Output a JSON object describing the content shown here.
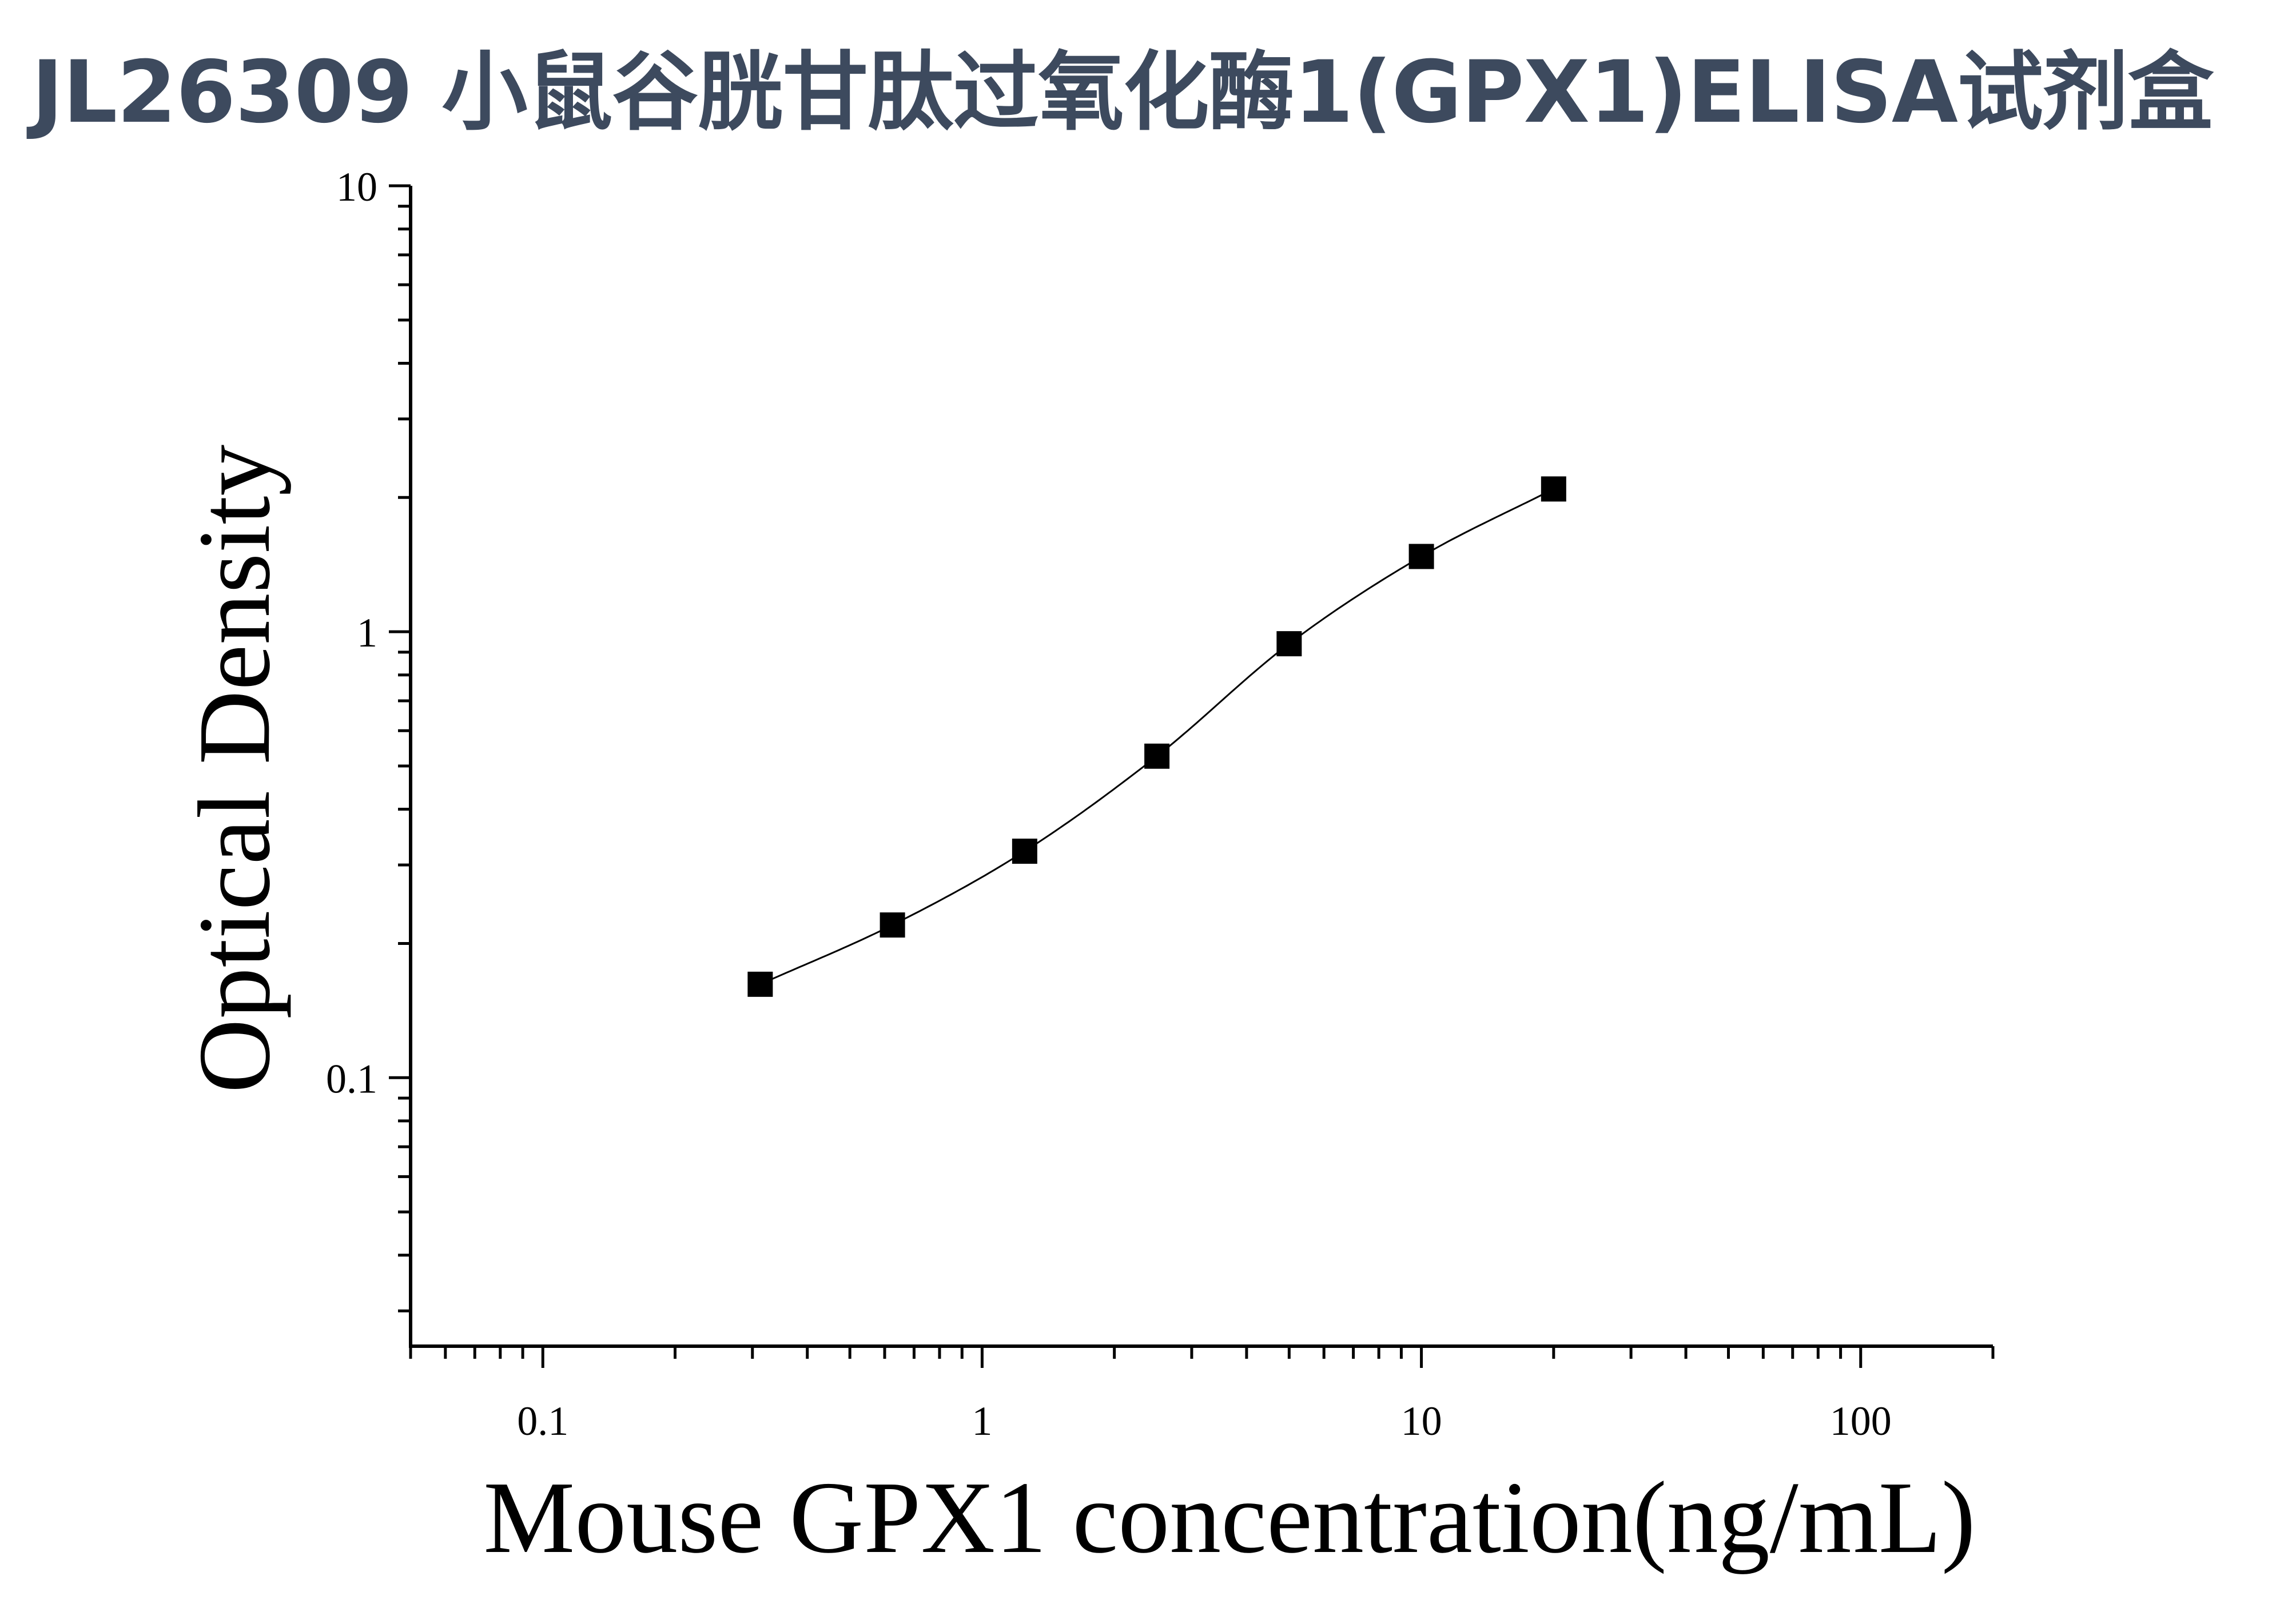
{
  "title": "JL26309 小鼠谷胱甘肽过氧化酶1(GPX1)ELISA试剂盒",
  "colors": {
    "title": "#3d4a5e",
    "axis": "#000000",
    "marker": "#000000",
    "curve": "#000000"
  },
  "chart_data": {
    "type": "scatter",
    "title": "JL26309 小鼠谷胱甘肽过氧化酶1(GPX1)ELISA试剂盒",
    "xlabel": "Mouse GPX1 concentration(ng/mL)",
    "ylabel": "Optical Density",
    "xscale": "log",
    "yscale": "log",
    "xlim": [
      0.05,
      200
    ],
    "ylim": [
      0.025,
      10
    ],
    "xticks": [
      0.1,
      1,
      10,
      100
    ],
    "xtick_labels": [
      "0.1",
      "1",
      "10",
      "100"
    ],
    "yticks": [
      0.1,
      1,
      10
    ],
    "ytick_labels": [
      "0.1",
      "1",
      "10"
    ],
    "grid": false,
    "marker": "square",
    "fit_curve": true,
    "series": [
      {
        "x": [
          0.3125,
          0.625,
          1.25,
          2.5,
          5,
          10,
          20
        ],
        "y": [
          0.162,
          0.22,
          0.322,
          0.526,
          0.94,
          1.475,
          2.09
        ]
      }
    ]
  }
}
